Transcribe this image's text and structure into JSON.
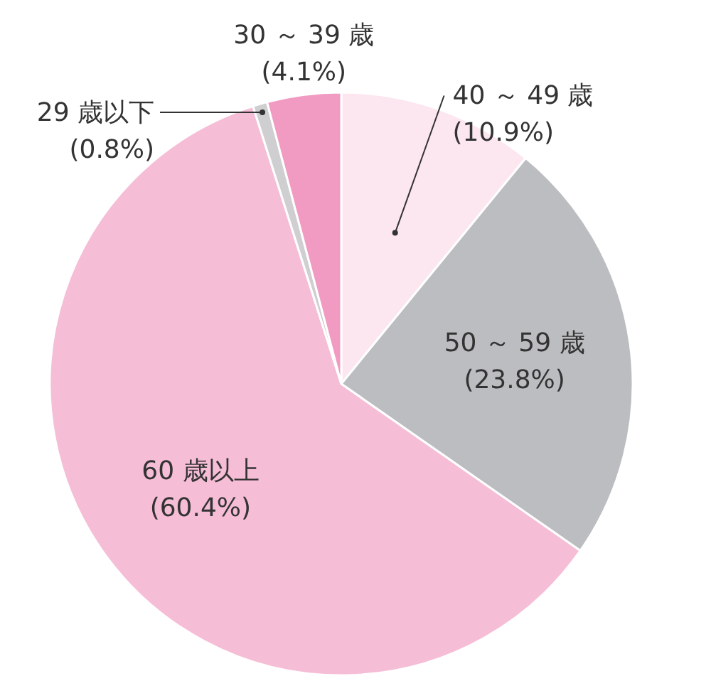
{
  "chart_data": {
    "type": "pie",
    "categories": [
      "40 ～ 49 歳",
      "50 ～ 59 歳",
      "60 歳以上",
      "29 歳以下",
      "30 ～ 39 歳"
    ],
    "values": [
      10.9,
      23.8,
      60.4,
      0.8,
      4.1
    ],
    "value_labels": [
      "(10.9%)",
      "(23.8%)",
      "(60.4%)",
      "(0.8%)",
      "(4.1%)"
    ],
    "colors": [
      "#fce6ef",
      "#bcbdc0",
      "#f6bdd6",
      "#cfcfd1",
      "#f19bc2"
    ]
  }
}
